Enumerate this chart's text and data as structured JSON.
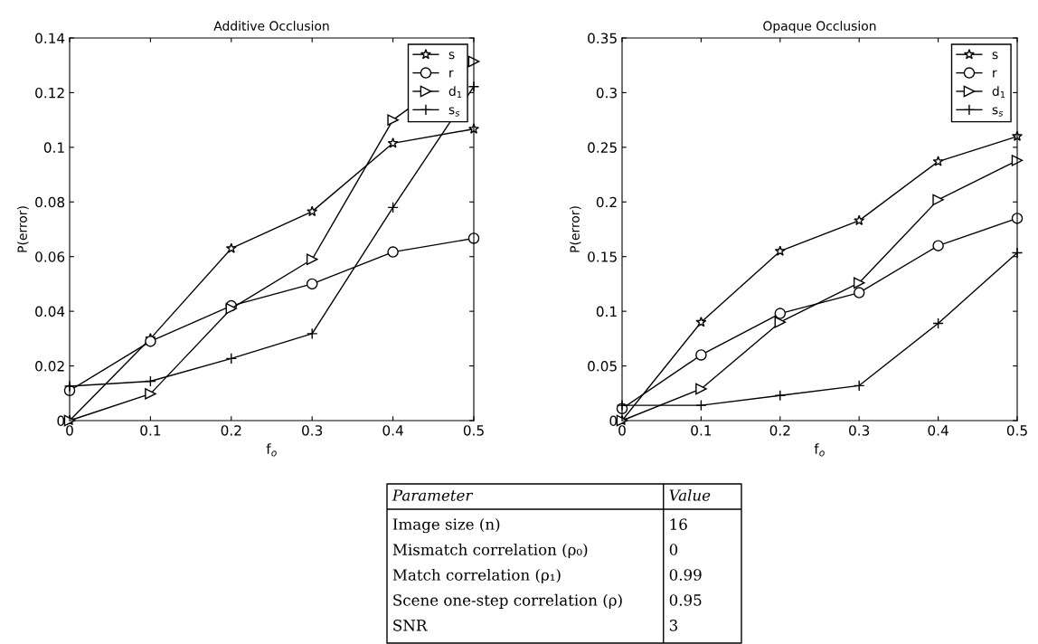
{
  "chart_data": [
    {
      "type": "line",
      "title": "Additive Occlusion",
      "xlabel": "f$_{o}$",
      "ylabel": "P(error)",
      "x": [
        0,
        0.1,
        0.2,
        0.3,
        0.4,
        0.5
      ],
      "xlim": [
        0,
        0.5
      ],
      "xticks": [
        0,
        0.1,
        0.2,
        0.3,
        0.4,
        0.5
      ],
      "ylim": [
        0,
        0.14
      ],
      "yticks": [
        0,
        0.02,
        0.04,
        0.06,
        0.08,
        0.1,
        0.12,
        0.14
      ],
      "legend": "top right",
      "grid": false,
      "series": [
        {
          "name": "s",
          "color": "#000000",
          "marker": "star",
          "values": [
            0,
            0.03,
            0.063,
            0.0765,
            0.1015,
            0.1067
          ]
        },
        {
          "name": "r",
          "color": "#000000",
          "marker": "circle",
          "values": [
            0.011,
            0.029,
            0.042,
            0.05,
            0.0617,
            0.0667
          ]
        },
        {
          "name": "d$_{1}$",
          "color": "#000000",
          "marker": "triangle",
          "values": [
            0,
            0.0098,
            0.041,
            0.059,
            0.11,
            0.1314
          ]
        },
        {
          "name": "s$_{s}$",
          "color": "#000000",
          "marker": "cross",
          "values": [
            0.0126,
            0.0144,
            0.0227,
            0.0318,
            0.078,
            0.1222
          ]
        }
      ]
    },
    {
      "type": "line",
      "title": "Opaque Occlusion",
      "xlabel": "f$_{o}$",
      "ylabel": "P(error)",
      "x": [
        0,
        0.1,
        0.2,
        0.3,
        0.4,
        0.5
      ],
      "xlim": [
        0,
        0.5
      ],
      "xticks": [
        0,
        0.1,
        0.2,
        0.3,
        0.4,
        0.5
      ],
      "ylim": [
        0,
        0.35
      ],
      "yticks": [
        0,
        0.05,
        0.1,
        0.15,
        0.2,
        0.25,
        0.3,
        0.35
      ],
      "legend": "top right",
      "grid": false,
      "series": [
        {
          "name": "s",
          "color": "#000000",
          "marker": "star",
          "values": [
            0,
            0.09,
            0.155,
            0.183,
            0.237,
            0.26
          ]
        },
        {
          "name": "r",
          "color": "#000000",
          "marker": "circle",
          "values": [
            0.011,
            0.06,
            0.098,
            0.117,
            0.16,
            0.185
          ]
        },
        {
          "name": "d$_{1}$",
          "color": "#000000",
          "marker": "triangle",
          "values": [
            0,
            0.029,
            0.09,
            0.126,
            0.202,
            0.238
          ]
        },
        {
          "name": "s$_{s}$",
          "color": "#000000",
          "marker": "cross",
          "values": [
            0.014,
            0.014,
            0.023,
            0.032,
            0.089,
            0.1535
          ]
        }
      ]
    },
    {
      "type": "other",
      "annotations": [
        "Parameter",
        "Value",
        "Image size (n)",
        "16",
        "Mismatch correlation (ρ₀)",
        "0",
        "Match correlation (ρ₁)",
        "0.99",
        "Scene one-step correlation (ρ)",
        "0.95",
        "SNR",
        "3"
      ]
    }
  ]
}
